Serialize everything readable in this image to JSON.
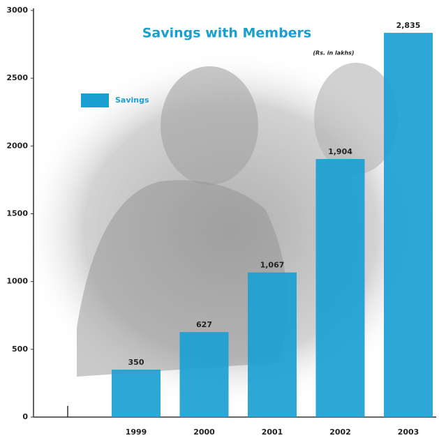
{
  "chart_data": {
    "type": "bar",
    "title": "Savings with Members",
    "subtitle": "(Rs. in lakhs)",
    "categories": [
      "1999",
      "2000",
      "2001",
      "2002",
      "2003"
    ],
    "series": [
      {
        "name": "Savings",
        "color": "#1a9fd2",
        "values": [
          350,
          627,
          1067,
          1904,
          2835
        ],
        "value_labels": [
          "350",
          "627",
          "1,067",
          "1,904",
          "2,835"
        ]
      }
    ],
    "ylim": [
      0,
      3000
    ],
    "yticks": [
      0,
      500,
      1000,
      1500,
      2000,
      2500,
      3000
    ]
  }
}
